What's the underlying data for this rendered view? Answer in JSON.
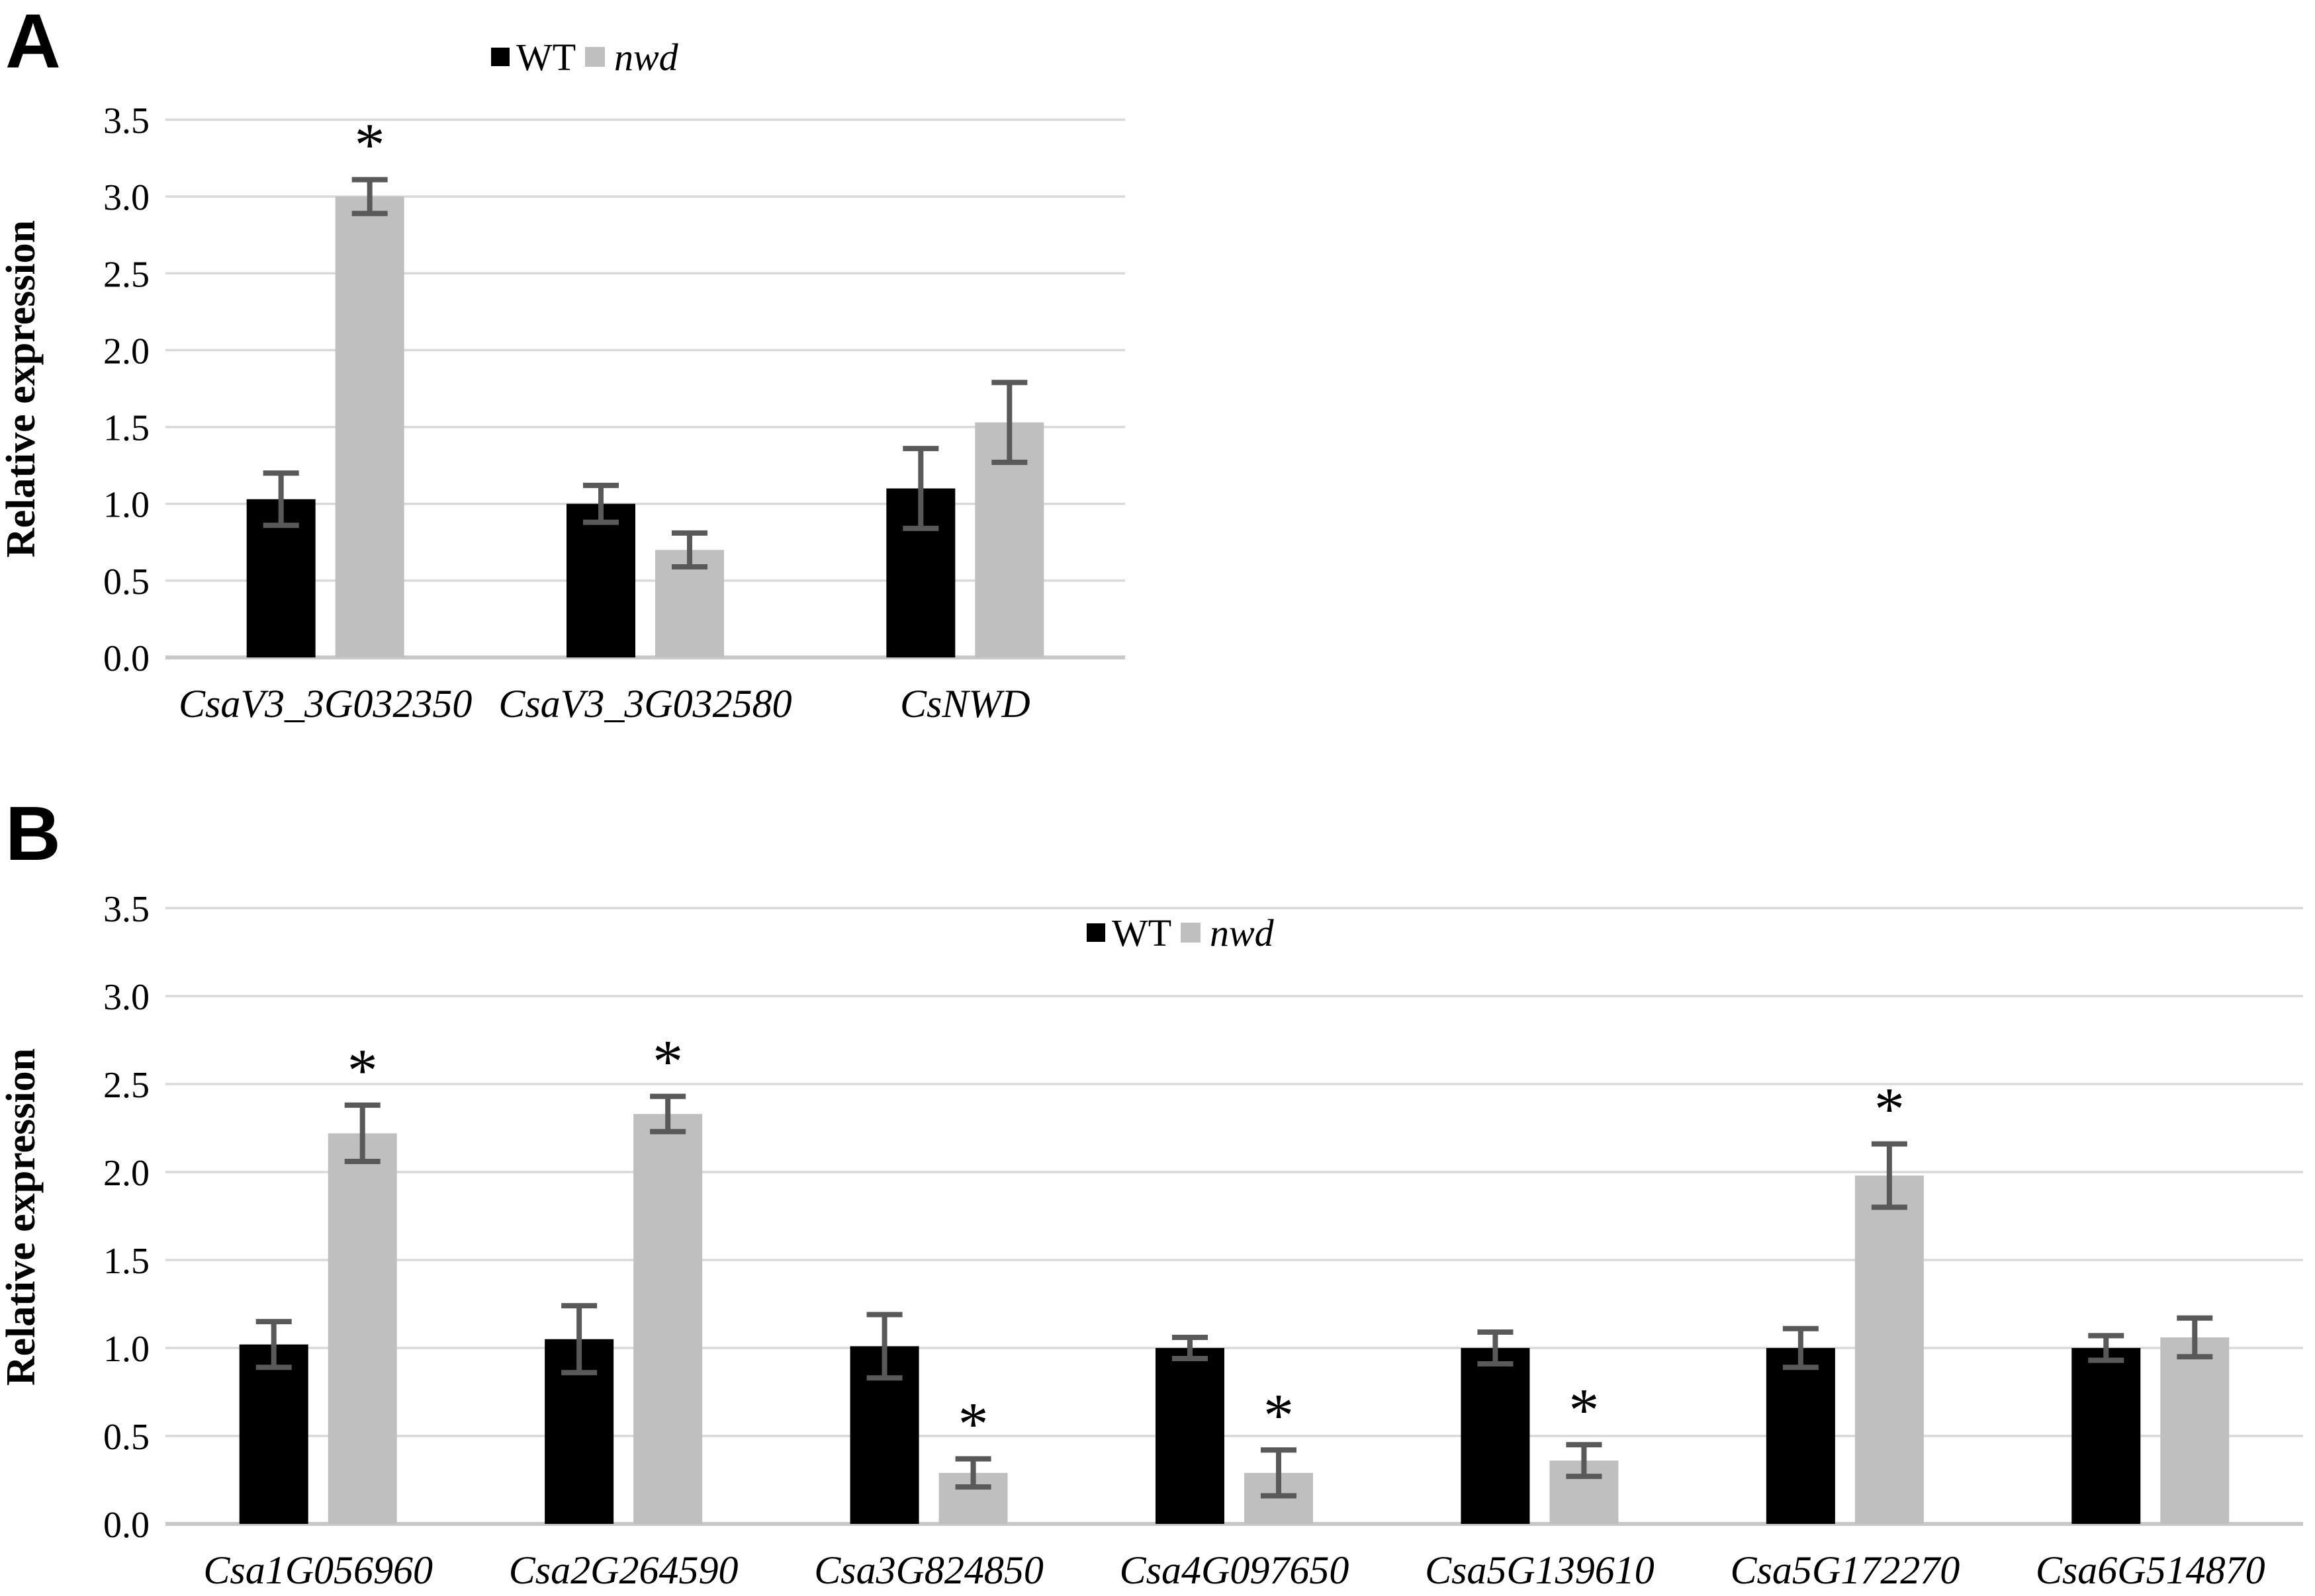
{
  "figure": {
    "description": "Two-panel bar chart figure comparing relative gene expression in WT and nwd",
    "background_color": "#ffffff",
    "panel_labels": [
      "A",
      "B"
    ]
  },
  "colors": {
    "wt_bar": "#000000",
    "nwd_bar": "#bfbfbf",
    "error_bar": "#595959",
    "gridline": "#d9d9d9",
    "axis_line": "#c9c9c9",
    "text": "#000000"
  },
  "chart_data": [
    {
      "type": "bar",
      "panel": "A",
      "title": "",
      "xlabel": "",
      "ylabel": "Relative expression",
      "ylim": [
        0,
        3.5
      ],
      "ytick_step": 0.5,
      "ytick_labels": [
        "0.0",
        "0.5",
        "1.0",
        "1.5",
        "2.0",
        "2.5",
        "3.0",
        "3.5"
      ],
      "grid": true,
      "legend_position": "top-center",
      "legend": [
        {
          "label": "WT",
          "color": "#000000",
          "italic": false
        },
        {
          "label": "nwd",
          "color": "#bfbfbf",
          "italic": true
        }
      ],
      "categories": [
        "CsaV3_3G032350",
        "CsaV3_3G032580",
        "CsNWD"
      ],
      "categories_italic": true,
      "series": [
        {
          "name": "WT",
          "color": "#000000",
          "values": [
            1.03,
            1.0,
            1.1
          ],
          "errors": [
            0.17,
            0.12,
            0.26
          ]
        },
        {
          "name": "nwd",
          "color": "#bfbfbf",
          "values": [
            3.0,
            0.7,
            1.53
          ],
          "errors": [
            0.11,
            0.11,
            0.26
          ]
        }
      ],
      "significance": [
        {
          "category_index": 0,
          "series": "nwd",
          "marker": "*"
        }
      ]
    },
    {
      "type": "bar",
      "panel": "B",
      "title": "",
      "xlabel": "",
      "ylabel": "Relative expression",
      "ylim": [
        0,
        3.5
      ],
      "ytick_step": 0.5,
      "ytick_labels": [
        "0.0",
        "0.5",
        "1.0",
        "1.5",
        "2.0",
        "2.5",
        "3.0",
        "3.5"
      ],
      "grid": true,
      "legend_position": "top-center",
      "legend": [
        {
          "label": "WT",
          "color": "#000000",
          "italic": false
        },
        {
          "label": "nwd",
          "color": "#bfbfbf",
          "italic": true
        }
      ],
      "categories": [
        "Csa1G056960",
        "Csa2G264590",
        "Csa3G824850",
        "Csa4G097650",
        "Csa5G139610",
        "Csa5G172270",
        "Csa6G514870"
      ],
      "categories_italic": true,
      "series": [
        {
          "name": "WT",
          "color": "#000000",
          "values": [
            1.02,
            1.05,
            1.01,
            1.0,
            1.0,
            1.0,
            1.0
          ],
          "errors": [
            0.13,
            0.19,
            0.18,
            0.06,
            0.09,
            0.11,
            0.07
          ]
        },
        {
          "name": "nwd",
          "color": "#bfbfbf",
          "values": [
            2.22,
            2.33,
            0.29,
            0.29,
            0.36,
            1.98,
            1.06
          ],
          "errors": [
            0.16,
            0.1,
            0.08,
            0.13,
            0.09,
            0.18,
            0.11
          ]
        }
      ],
      "significance": [
        {
          "category_index": 0,
          "series": "nwd",
          "marker": "*"
        },
        {
          "category_index": 1,
          "series": "nwd",
          "marker": "*"
        },
        {
          "category_index": 2,
          "series": "nwd",
          "marker": "*"
        },
        {
          "category_index": 3,
          "series": "nwd",
          "marker": "*"
        },
        {
          "category_index": 4,
          "series": "nwd",
          "marker": "*"
        },
        {
          "category_index": 5,
          "series": "nwd",
          "marker": "*"
        }
      ]
    }
  ]
}
